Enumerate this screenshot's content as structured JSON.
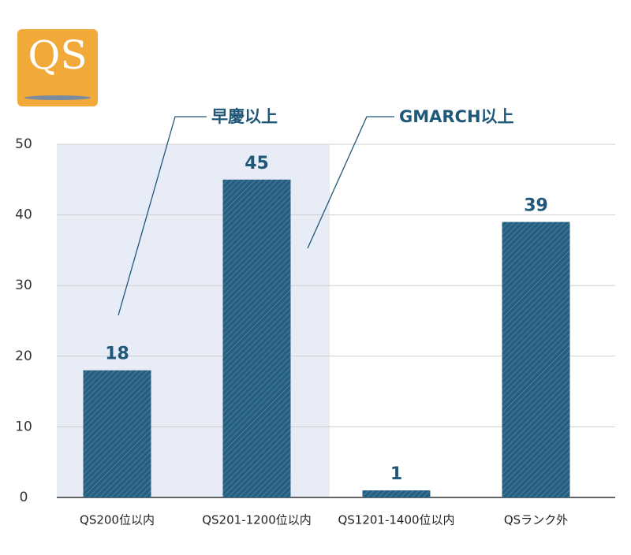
{
  "logo": "QS",
  "chart_data": {
    "type": "bar",
    "categories": [
      "QS200位以内",
      "QS201-1200位以内",
      "QS1201-1400位以内",
      "QSランク外"
    ],
    "values": [
      18,
      45,
      1,
      39
    ],
    "color": "#245e80",
    "ylim": [
      0,
      50
    ],
    "yticks": [
      0,
      10,
      20,
      30,
      40,
      50
    ],
    "grid": true,
    "annotations": [
      "早慶以上",
      "GMARCH以上"
    ]
  }
}
